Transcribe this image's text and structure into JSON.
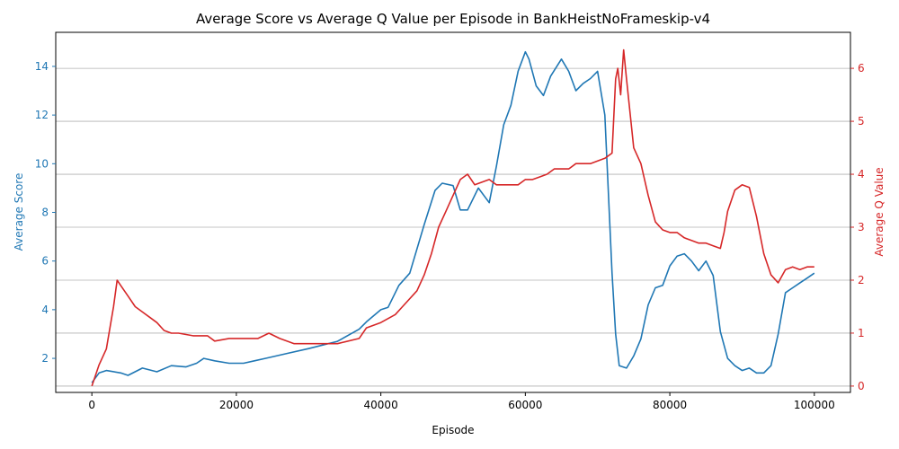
{
  "chart_data": {
    "type": "line",
    "title": "Average Score vs Average Q Value per Episode in BankHeistNoFrameskip-v4",
    "xlabel": "Episode",
    "ylabel_left": "Average Score",
    "ylabel_right": "Average Q Value",
    "xlim": [
      -5000,
      105000
    ],
    "ylim_left": [
      0.6,
      15.4
    ],
    "ylim_right": [
      -0.12,
      6.68
    ],
    "x_ticks": [
      0,
      20000,
      40000,
      60000,
      80000,
      100000
    ],
    "y_ticks_left": [
      2,
      4,
      6,
      8,
      10,
      12,
      14
    ],
    "y_ticks_right": [
      0,
      1,
      2,
      3,
      4,
      5,
      6
    ],
    "grid": "horizontal (right axis)",
    "colors": {
      "left_series": "#1f77b4",
      "right_series": "#d62728",
      "grid": "#b0b0b0"
    },
    "series": [
      {
        "axis": "left",
        "color": "#1f77b4",
        "x": [
          0,
          1000,
          2000,
          4000,
          5000,
          7000,
          9000,
          11000,
          13000,
          14500,
          15500,
          17000,
          19000,
          21000,
          22500,
          24000,
          27000,
          30000,
          34000,
          37000,
          38000,
          40000,
          41000,
          42500,
          44000,
          46000,
          47500,
          48500,
          50000,
          51000,
          52000,
          53500,
          55000,
          56000,
          57000,
          58000,
          59000,
          60000,
          60500,
          61500,
          62500,
          63500,
          65000,
          66000,
          67000,
          68000,
          69000,
          70000,
          71000,
          72000,
          72500,
          73000,
          74000,
          75000,
          76000,
          77000,
          78000,
          79000,
          80000,
          81000,
          82000,
          83000,
          84000,
          85000,
          86000,
          87000,
          88000,
          89000,
          90000,
          91000,
          92000,
          93000,
          94000,
          95000,
          96000,
          97000,
          98000,
          99000,
          100000
        ],
        "values": [
          1.0,
          1.4,
          1.5,
          1.4,
          1.3,
          1.6,
          1.45,
          1.7,
          1.65,
          1.8,
          2.0,
          1.9,
          1.8,
          1.8,
          1.9,
          2.0,
          2.2,
          2.4,
          2.7,
          3.2,
          3.5,
          4.0,
          4.1,
          5.0,
          5.5,
          7.5,
          8.9,
          9.2,
          9.1,
          8.1,
          8.1,
          9.0,
          8.4,
          9.9,
          11.6,
          12.4,
          13.8,
          14.6,
          14.3,
          13.2,
          12.8,
          13.6,
          14.3,
          13.8,
          13.0,
          13.3,
          13.5,
          13.8,
          12.0,
          5.5,
          3.0,
          1.7,
          1.6,
          2.1,
          2.8,
          4.2,
          4.9,
          5.0,
          5.8,
          6.2,
          6.3,
          6.0,
          5.6,
          6.0,
          5.4,
          3.1,
          2.0,
          1.7,
          1.5,
          1.6,
          1.4,
          1.4,
          1.7,
          3.0,
          4.7,
          4.9,
          5.1,
          5.3,
          5.5
        ]
      },
      {
        "axis": "right",
        "color": "#d62728",
        "x": [
          0,
          1000,
          2000,
          3000,
          3500,
          4000,
          5000,
          6000,
          7000,
          8000,
          9000,
          10000,
          11000,
          12000,
          14000,
          16000,
          17000,
          19000,
          21000,
          23000,
          24500,
          26000,
          28000,
          30000,
          32000,
          34000,
          37000,
          38000,
          40000,
          42000,
          43000,
          45000,
          46000,
          47000,
          48000,
          49000,
          50000,
          51000,
          52000,
          53000,
          55000,
          56000,
          57000,
          58000,
          59000,
          60000,
          61000,
          62000,
          63000,
          64000,
          65000,
          66000,
          67000,
          68000,
          69000,
          70000,
          71000,
          72000,
          72500,
          72800,
          73200,
          73600,
          74000,
          75000,
          76000,
          77000,
          78000,
          79000,
          80000,
          81000,
          82000,
          83000,
          84000,
          85000,
          86000,
          87000,
          87500,
          88000,
          89000,
          90000,
          91000,
          92000,
          93000,
          94000,
          95000,
          96000,
          97000,
          98000,
          99000,
          100000
        ],
        "values": [
          0.0,
          0.4,
          0.7,
          1.5,
          2.0,
          1.9,
          1.7,
          1.5,
          1.4,
          1.3,
          1.2,
          1.05,
          1.0,
          1.0,
          0.95,
          0.95,
          0.85,
          0.9,
          0.9,
          0.9,
          1.0,
          0.9,
          0.8,
          0.8,
          0.8,
          0.8,
          0.9,
          1.1,
          1.2,
          1.35,
          1.5,
          1.8,
          2.1,
          2.5,
          3.0,
          3.3,
          3.6,
          3.9,
          4.0,
          3.8,
          3.9,
          3.8,
          3.8,
          3.8,
          3.8,
          3.9,
          3.9,
          3.95,
          4.0,
          4.1,
          4.1,
          4.1,
          4.2,
          4.2,
          4.2,
          4.25,
          4.3,
          4.4,
          5.8,
          6.0,
          5.5,
          6.35,
          5.8,
          4.5,
          4.2,
          3.6,
          3.1,
          2.95,
          2.9,
          2.9,
          2.8,
          2.75,
          2.7,
          2.7,
          2.65,
          2.6,
          2.9,
          3.3,
          3.7,
          3.8,
          3.75,
          3.2,
          2.5,
          2.1,
          1.95,
          2.2,
          2.25,
          2.2,
          2.25,
          2.25
        ]
      }
    ]
  }
}
